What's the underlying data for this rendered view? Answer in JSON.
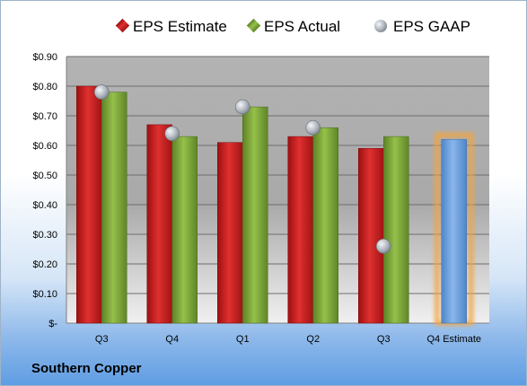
{
  "company": "Southern Copper",
  "chart_data": {
    "type": "bar",
    "categories": [
      "Q3",
      "Q4",
      "Q1",
      "Q2",
      "Q3",
      "Q4 Estimate"
    ],
    "series": [
      {
        "name": "EPS Estimate",
        "values": [
          0.8,
          0.67,
          0.61,
          0.63,
          0.59,
          null
        ],
        "color": "#d42020"
      },
      {
        "name": "EPS Actual",
        "values": [
          0.78,
          0.63,
          0.73,
          0.66,
          0.63,
          null
        ],
        "color": "#7fa83a"
      },
      {
        "name": "EPS GAAP",
        "type": "scatter",
        "values": [
          0.78,
          0.64,
          0.73,
          0.66,
          0.26,
          null
        ],
        "color": "#b8bec6"
      }
    ],
    "forecast": {
      "category": "Q4 Estimate",
      "value": 0.62,
      "color": "#6fa0dc",
      "glow": "#f4a43c"
    },
    "yticks": [
      "$-",
      "$0.10",
      "$0.20",
      "$0.30",
      "$0.40",
      "$0.50",
      "$0.60",
      "$0.70",
      "$0.80",
      "$0.90"
    ],
    "ylim": [
      0,
      0.9
    ],
    "grid": true,
    "legend": "top"
  }
}
